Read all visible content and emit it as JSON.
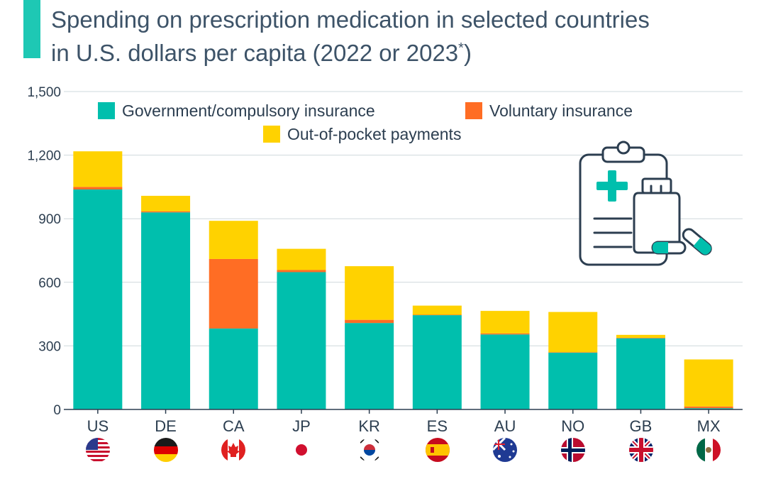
{
  "title_line1": "Spending on prescription medication in selected countries",
  "title_line2_main": "in U.S. dollars per capita (2022 or 2023",
  "title_line2_sup": "*",
  "title_line2_end": ")",
  "colors": {
    "accent": "#1ec8b4",
    "government": "#00bfad",
    "voluntary": "#ff6d24",
    "out_of_pocket": "#ffd200",
    "grid": "#cfd8dc",
    "axis": "#2c3e50",
    "icon_stroke": "#2c3e50"
  },
  "icons": [
    "clipboard-icon",
    "medicine-bottle-icon",
    "pill-capsule-icon"
  ],
  "chart_data": {
    "type": "bar",
    "stacked": true,
    "categories": [
      "US",
      "DE",
      "CA",
      "JP",
      "KR",
      "ES",
      "AU",
      "NO",
      "GB",
      "MX"
    ],
    "category_flags": [
      "us-flag-icon",
      "de-flag-icon",
      "ca-flag-icon",
      "jp-flag-icon",
      "kr-flag-icon",
      "es-flag-icon",
      "au-flag-icon",
      "no-flag-icon",
      "gb-flag-icon",
      "mx-flag-icon"
    ],
    "series": [
      {
        "name": "Government/compulsory insurance",
        "color": "#00bfad",
        "values": [
          1038,
          930,
          382,
          648,
          408,
          445,
          354,
          268,
          336,
          6
        ]
      },
      {
        "name": "Voluntary insurance",
        "color": "#ff6d24",
        "values": [
          12,
          5,
          328,
          10,
          15,
          2,
          5,
          2,
          2,
          8
        ]
      },
      {
        "name": "Out-of-pocket payments",
        "color": "#ffd200",
        "values": [
          168,
          73,
          180,
          100,
          253,
          43,
          106,
          190,
          14,
          222
        ]
      }
    ],
    "ylim": [
      0,
      1500
    ],
    "yticks": [
      0,
      300,
      600,
      900,
      1200,
      1500
    ],
    "ytick_labels": [
      "0",
      "300",
      "600",
      "900",
      "1,200",
      "1,500"
    ],
    "grid": true,
    "legend_position": "top-center"
  }
}
